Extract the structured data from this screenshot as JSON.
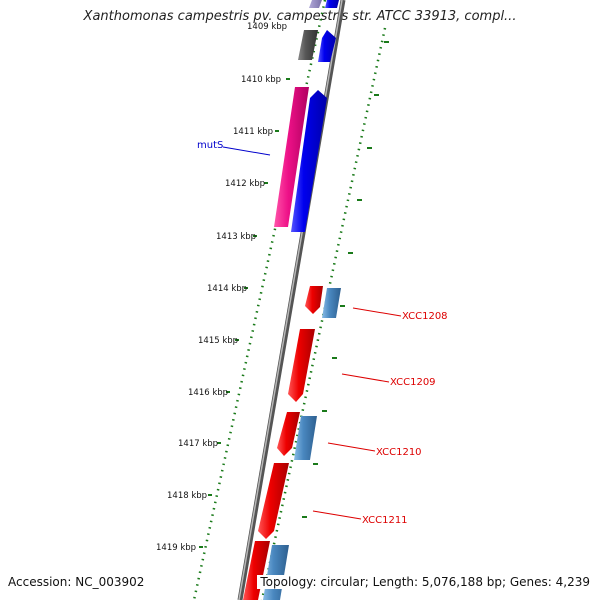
{
  "title": "Xanthomonas campestris pv. campestris str. ATCC 33913, compl...",
  "accession": "Accession: NC_003902",
  "info": "Topology: circular; Length: 5,076,188 bp; Genes: 4,239",
  "tick_labels": [
    "1409 kbp",
    "1410 kbp",
    "1411 kbp",
    "1412 kbp",
    "1413 kbp",
    "1414 kbp",
    "1415 kbp",
    "1416 kbp",
    "1417 kbp",
    "1418 kbp",
    "1419 kbp"
  ],
  "gene_labels": [
    {
      "name": "mutS",
      "color": "#0000cc"
    },
    {
      "name": "XCC1208",
      "color": "#dd0000"
    },
    {
      "name": "XCC1209",
      "color": "#dd0000"
    },
    {
      "name": "XCC1210",
      "color": "#dd0000"
    },
    {
      "name": "XCC1211",
      "color": "#dd0000"
    }
  ],
  "colors": {
    "backbone": "#888888",
    "tick_green": "#1a7a1a",
    "gene_blue": "#0000ee",
    "gene_magenta": "#ee1188",
    "gene_red": "#ee0000",
    "gene_steelblue": "#4a88c0",
    "gene_gray": "#555555"
  }
}
